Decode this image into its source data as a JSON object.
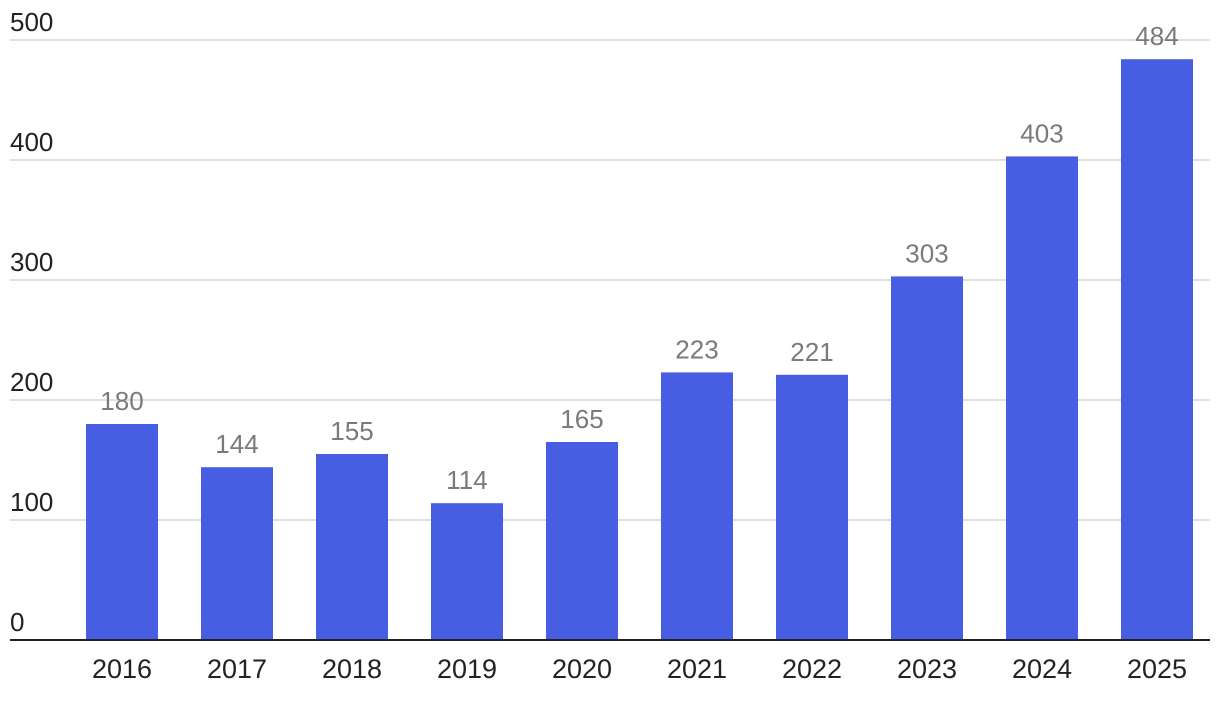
{
  "chart_data": {
    "type": "bar",
    "categories": [
      "2016",
      "2017",
      "2018",
      "2019",
      "2020",
      "2021",
      "2022",
      "2023",
      "2024",
      "2025"
    ],
    "values": [
      180,
      144,
      155,
      114,
      165,
      223,
      221,
      303,
      403,
      484
    ],
    "data_labels": [
      "180",
      "144",
      "155",
      "114",
      "165",
      "223",
      "221",
      "303",
      "403",
      "484"
    ],
    "y_ticks": [
      0,
      100,
      200,
      300,
      400,
      500
    ],
    "y_tick_labels": [
      "0",
      "100",
      "200",
      "300",
      "400",
      "500"
    ],
    "ylim": [
      0,
      500
    ],
    "grid": true,
    "legend": "none",
    "colors": {
      "bar": "#475ee3",
      "grid": "#d5d5d5",
      "axis": "#222222",
      "data_label": "#7a7a7a",
      "tick_label": "#222222"
    }
  }
}
